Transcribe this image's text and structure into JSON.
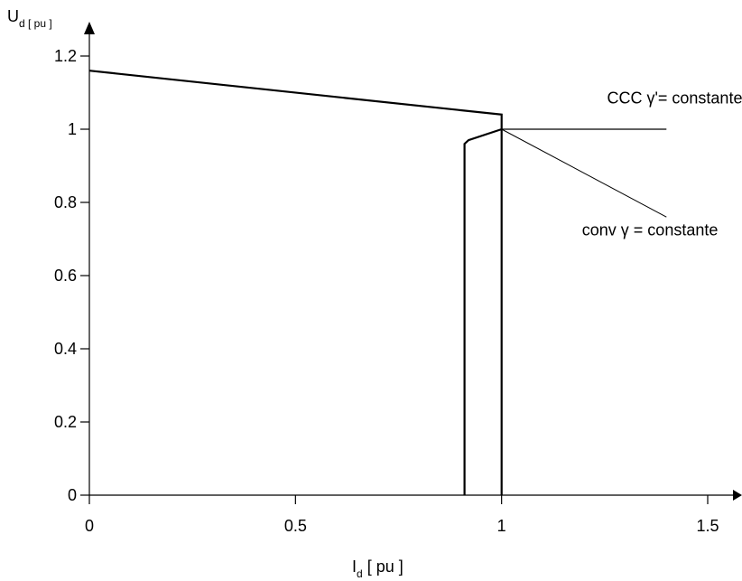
{
  "chart_data": {
    "type": "line",
    "xlabel": {
      "main": "I",
      "sub": "d",
      "rest": " [ pu ]"
    },
    "ylabel": {
      "main": "U",
      "sub": "d [ pu ]"
    },
    "xlim": [
      0,
      1.5
    ],
    "ylim": [
      0,
      1.2
    ],
    "grid": false,
    "x_ticks": [
      {
        "value": 0,
        "label": "0"
      },
      {
        "value": 0.5,
        "label": "0.5"
      },
      {
        "value": 1,
        "label": "1"
      },
      {
        "value": 1.5,
        "label": "1.5"
      }
    ],
    "y_ticks": [
      {
        "value": 0,
        "label": "0"
      },
      {
        "value": 0.2,
        "label": "0.2"
      },
      {
        "value": 0.4,
        "label": "0.4"
      },
      {
        "value": 0.6,
        "label": "0.6"
      },
      {
        "value": 0.8,
        "label": "0.8"
      },
      {
        "value": 1,
        "label": "1"
      },
      {
        "value": 1.2,
        "label": "1.2"
      }
    ],
    "series": [
      {
        "points": [
          [
            0,
            1.16
          ],
          [
            1,
            1.04
          ],
          [
            1,
            0
          ]
        ]
      },
      {
        "points": [
          [
            0.91,
            0
          ],
          [
            0.91,
            0.96
          ],
          [
            0.92,
            0.97
          ],
          [
            1,
            1
          ]
        ]
      },
      {
        "points": [
          [
            1,
            1
          ],
          [
            1.4,
            1
          ]
        ]
      },
      {
        "points": [
          [
            1,
            1
          ],
          [
            1.4,
            0.76
          ]
        ]
      }
    ],
    "annotations": [
      {
        "text": "CCC γ'= constante",
        "x": 1.42,
        "y": 1.07
      },
      {
        "text": "conv γ = constante",
        "x": 1.36,
        "y": 0.71
      }
    ]
  }
}
